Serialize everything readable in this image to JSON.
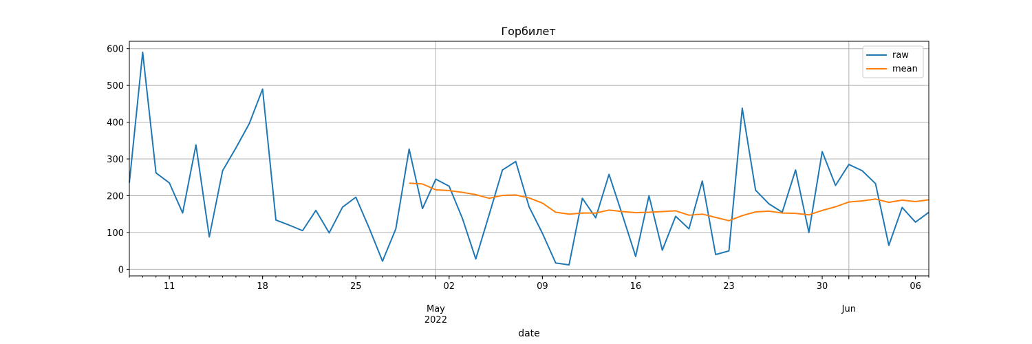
{
  "chart_data": {
    "type": "line",
    "title": "Горбилет",
    "xlabel": "date",
    "ylabel": "",
    "ylim": [
      -18,
      620
    ],
    "xlim": [
      "2022-04-08",
      "2022-06-07"
    ],
    "yticks": [
      0,
      100,
      200,
      300,
      400,
      500,
      600
    ],
    "xticks": [
      {
        "date": "2022-04-11",
        "label": "11"
      },
      {
        "date": "2022-04-18",
        "label": "18"
      },
      {
        "date": "2022-04-25",
        "label": "25"
      },
      {
        "date": "2022-05-02",
        "label": "02"
      },
      {
        "date": "2022-05-09",
        "label": "09"
      },
      {
        "date": "2022-05-16",
        "label": "16"
      },
      {
        "date": "2022-05-23",
        "label": "23"
      },
      {
        "date": "2022-05-30",
        "label": "30"
      },
      {
        "date": "2022-06-06",
        "label": "06"
      }
    ],
    "month_labels": [
      {
        "date": "2022-05-01",
        "label": "May",
        "sublabel": "2022"
      },
      {
        "date": "2022-06-01",
        "label": "Jun",
        "sublabel": ""
      }
    ],
    "grid": true,
    "legend_position": "top-right",
    "series": [
      {
        "name": "raw",
        "color": "#1f77b4",
        "start_date": "2022-04-08",
        "values": [
          235,
          590,
          262,
          235,
          153,
          338,
          88,
          268,
          330,
          396,
          490,
          134,
          120,
          105,
          160,
          99,
          169,
          196,
          112,
          22,
          110,
          327,
          165,
          245,
          226,
          138,
          28,
          148,
          270,
          293,
          170,
          98,
          17,
          12,
          193,
          140,
          258,
          148,
          35,
          200,
          52,
          144,
          110,
          240,
          40,
          50,
          438,
          215,
          178,
          155,
          270,
          100,
          320,
          228,
          285,
          268,
          233,
          65,
          168,
          128,
          155
        ]
      },
      {
        "name": "mean",
        "color": "#ff7f0e",
        "start_date": "2022-04-29",
        "values": [
          234,
          232,
          216,
          214,
          209,
          203,
          193,
          201,
          202,
          194,
          180,
          155,
          150,
          153,
          153,
          161,
          157,
          154,
          155,
          157,
          159,
          147,
          150,
          141,
          132,
          146,
          156,
          158,
          153,
          152,
          148,
          160,
          170,
          183,
          186,
          191,
          182,
          188,
          184,
          189
        ]
      }
    ]
  }
}
